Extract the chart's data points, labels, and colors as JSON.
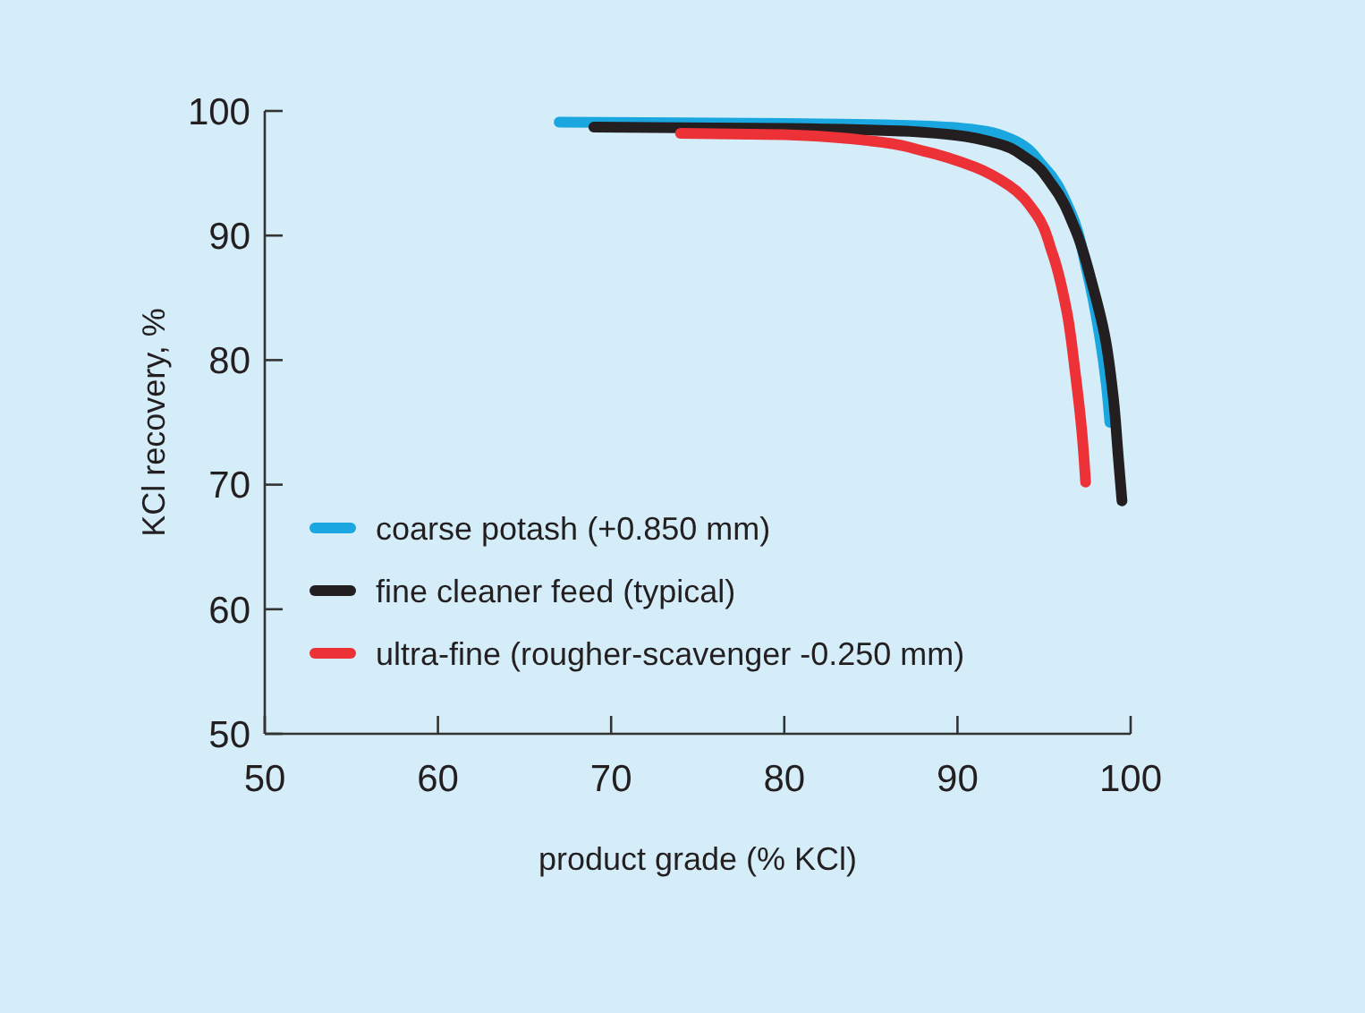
{
  "chart_data": {
    "type": "line",
    "xlabel": "product grade (% KCl)",
    "ylabel": "KCl recovery, %",
    "xlim": [
      50,
      100
    ],
    "ylim": [
      50,
      100
    ],
    "xticks": [
      50,
      60,
      70,
      80,
      90,
      100
    ],
    "yticks": [
      50,
      60,
      70,
      80,
      90,
      100
    ],
    "grid": false,
    "legend": "bottom left",
    "marker": "none",
    "line_style": "solid",
    "series": [
      {
        "name": "coarse potash (+0.850 mm)",
        "color": "#1aa7e0",
        "x": [
          67,
          80,
          88,
          91,
          93,
          95,
          96.5,
          97.5,
          98.2,
          98.6,
          98.8
        ],
        "values": [
          99.1,
          99,
          98.8,
          98.5,
          97.8,
          95.5,
          92,
          87,
          82,
          78,
          75
        ]
      },
      {
        "name": "fine cleaner feed (typical)",
        "color": "#231f20",
        "x": [
          69,
          80,
          88,
          92,
          94,
          95.5,
          96.8,
          97.8,
          98.5,
          99,
          99.3,
          99.5
        ],
        "values": [
          98.7,
          98.6,
          98.3,
          97.5,
          96.2,
          94,
          90.5,
          86,
          82,
          77,
          72,
          68.7
        ]
      },
      {
        "name": "ultra-fine (rougher-scavenger -0.250 mm)",
        "color": "#ec3237",
        "x": [
          74,
          80,
          85,
          88,
          91,
          93,
          94.5,
          95.5,
          96.3,
          96.8,
          97.2,
          97.4
        ],
        "values": [
          98.2,
          98.1,
          97.6,
          96.8,
          95.5,
          94,
          91.8,
          88.5,
          84,
          79,
          74,
          70.2
        ]
      }
    ]
  }
}
